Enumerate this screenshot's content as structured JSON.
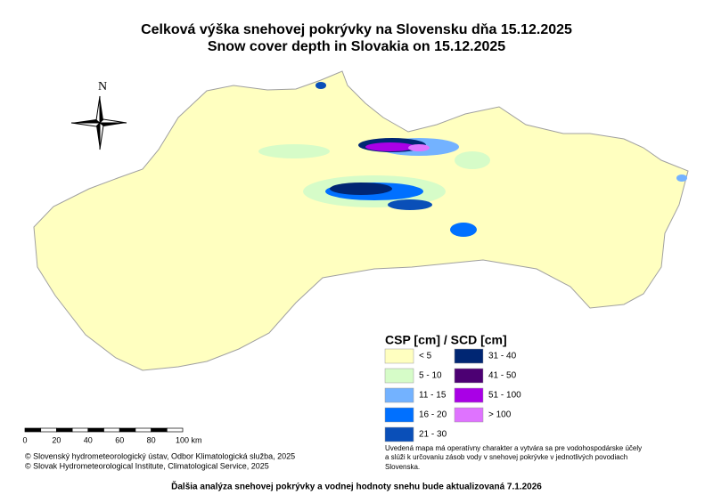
{
  "title": {
    "sk": "Celková výška snehovej pokrývky na Slovensku dňa 15.12.2025",
    "en": "Snow cover depth in Slovakia on 15.12.2025"
  },
  "north": "N",
  "legend": {
    "title": "CSP [cm] / SCD [cm]",
    "items": [
      {
        "label": "< 5",
        "color": "#ffffc0"
      },
      {
        "label": "5 - 10",
        "color": "#d6fcc8"
      },
      {
        "label": "11 - 15",
        "color": "#73b2ff"
      },
      {
        "label": "16 - 20",
        "color": "#0070ff"
      },
      {
        "label": "21 - 30",
        "color": "#0a4fb8"
      },
      {
        "label": "31 - 40",
        "color": "#002673"
      },
      {
        "label": "41 - 50",
        "color": "#4c0073"
      },
      {
        "label": "51 - 100",
        "color": "#a900e6"
      },
      {
        "label": "> 100",
        "color": "#df73ff"
      }
    ]
  },
  "scale_bar": {
    "labels": [
      "0",
      "20",
      "40",
      "60",
      "80",
      "100 km"
    ]
  },
  "credits": [
    "© Slovenský hydrometeorologický ústav, Odbor Klimatologická služba, 2025",
    "© Slovak Hydrometeorological Institute, Climatological Service, 2025"
  ],
  "note": [
    "Uvedená mapa má operatívny charakter a vytvára sa pre vodohospodárske účely",
    " a slúži k určovaniu zásob vody v snehovej pokrývke v jednotlivých povodiach",
    "Slovenska."
  ],
  "footer": "Ďalšia analýza snehovej pokrývky a vodnej hodnoty snehu bude aktualizovaná 7.1.2026"
}
